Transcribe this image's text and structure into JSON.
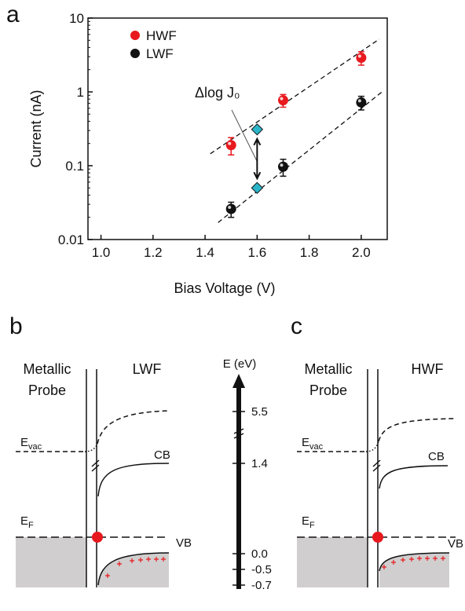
{
  "chart_data": {
    "type": "scatter",
    "panel_label": "a",
    "x_label": "Bias Voltage (V)",
    "y_label": "Current (nA)",
    "xlim": [
      0.95,
      2.1
    ],
    "ylim": [
      0.01,
      10
    ],
    "log_y": true,
    "xticks": [
      {
        "value": 1,
        "label": "1.0"
      },
      1.2,
      1.4,
      1.6,
      1.8,
      {
        "value": 2,
        "label": "2.0"
      }
    ],
    "yticks": [
      0.01,
      0.1,
      1,
      10
    ],
    "legend_loc": "upper left",
    "series": [
      {
        "name": "HWF",
        "color": "#e8191e",
        "x": [
          1.5,
          1.7,
          2.0
        ],
        "values": [
          0.19,
          0.77,
          2.9
        ],
        "errors": [
          0.05,
          0.15,
          0.6
        ]
      },
      {
        "name": "LWF",
        "color": "#111111",
        "x": [
          1.5,
          1.7,
          2.0
        ],
        "values": [
          0.026,
          0.097,
          0.72
        ],
        "errors": [
          0.006,
          0.025,
          0.15
        ]
      }
    ],
    "fits": [
      {
        "x": [
          1.42,
          2.07
        ],
        "values": [
          0.145,
          5.2
        ]
      },
      {
        "x": [
          1.45,
          2.08
        ],
        "values": [
          0.017,
          1.0
        ]
      }
    ],
    "markers": {
      "color": "#2bb5c8",
      "x": [
        1.6,
        1.6
      ],
      "values": [
        0.31,
        0.05
      ]
    },
    "annotation": "Δlog J₀"
  },
  "diagram": {
    "energy_axis": {
      "title": "E (eV)",
      "ticks": [
        "5.5",
        "1.4",
        "0.0",
        "-0.5",
        "-0.7"
      ]
    },
    "panels": [
      {
        "label": "b",
        "probe": [
          "Metallic",
          "Probe"
        ],
        "sample": "LWF",
        "evac": {
          "main": "E",
          "sub": "vac"
        },
        "cb": "CB",
        "ef": {
          "main": "E",
          "sub": "F"
        },
        "vb": "VB"
      },
      {
        "label": "c",
        "probe": [
          "Metallic",
          "Probe"
        ],
        "sample": "HWF",
        "evac": {
          "main": "E",
          "sub": "vac"
        },
        "cb": "CB",
        "ef": {
          "main": "E",
          "sub": "F"
        },
        "vb": "VB"
      }
    ]
  }
}
